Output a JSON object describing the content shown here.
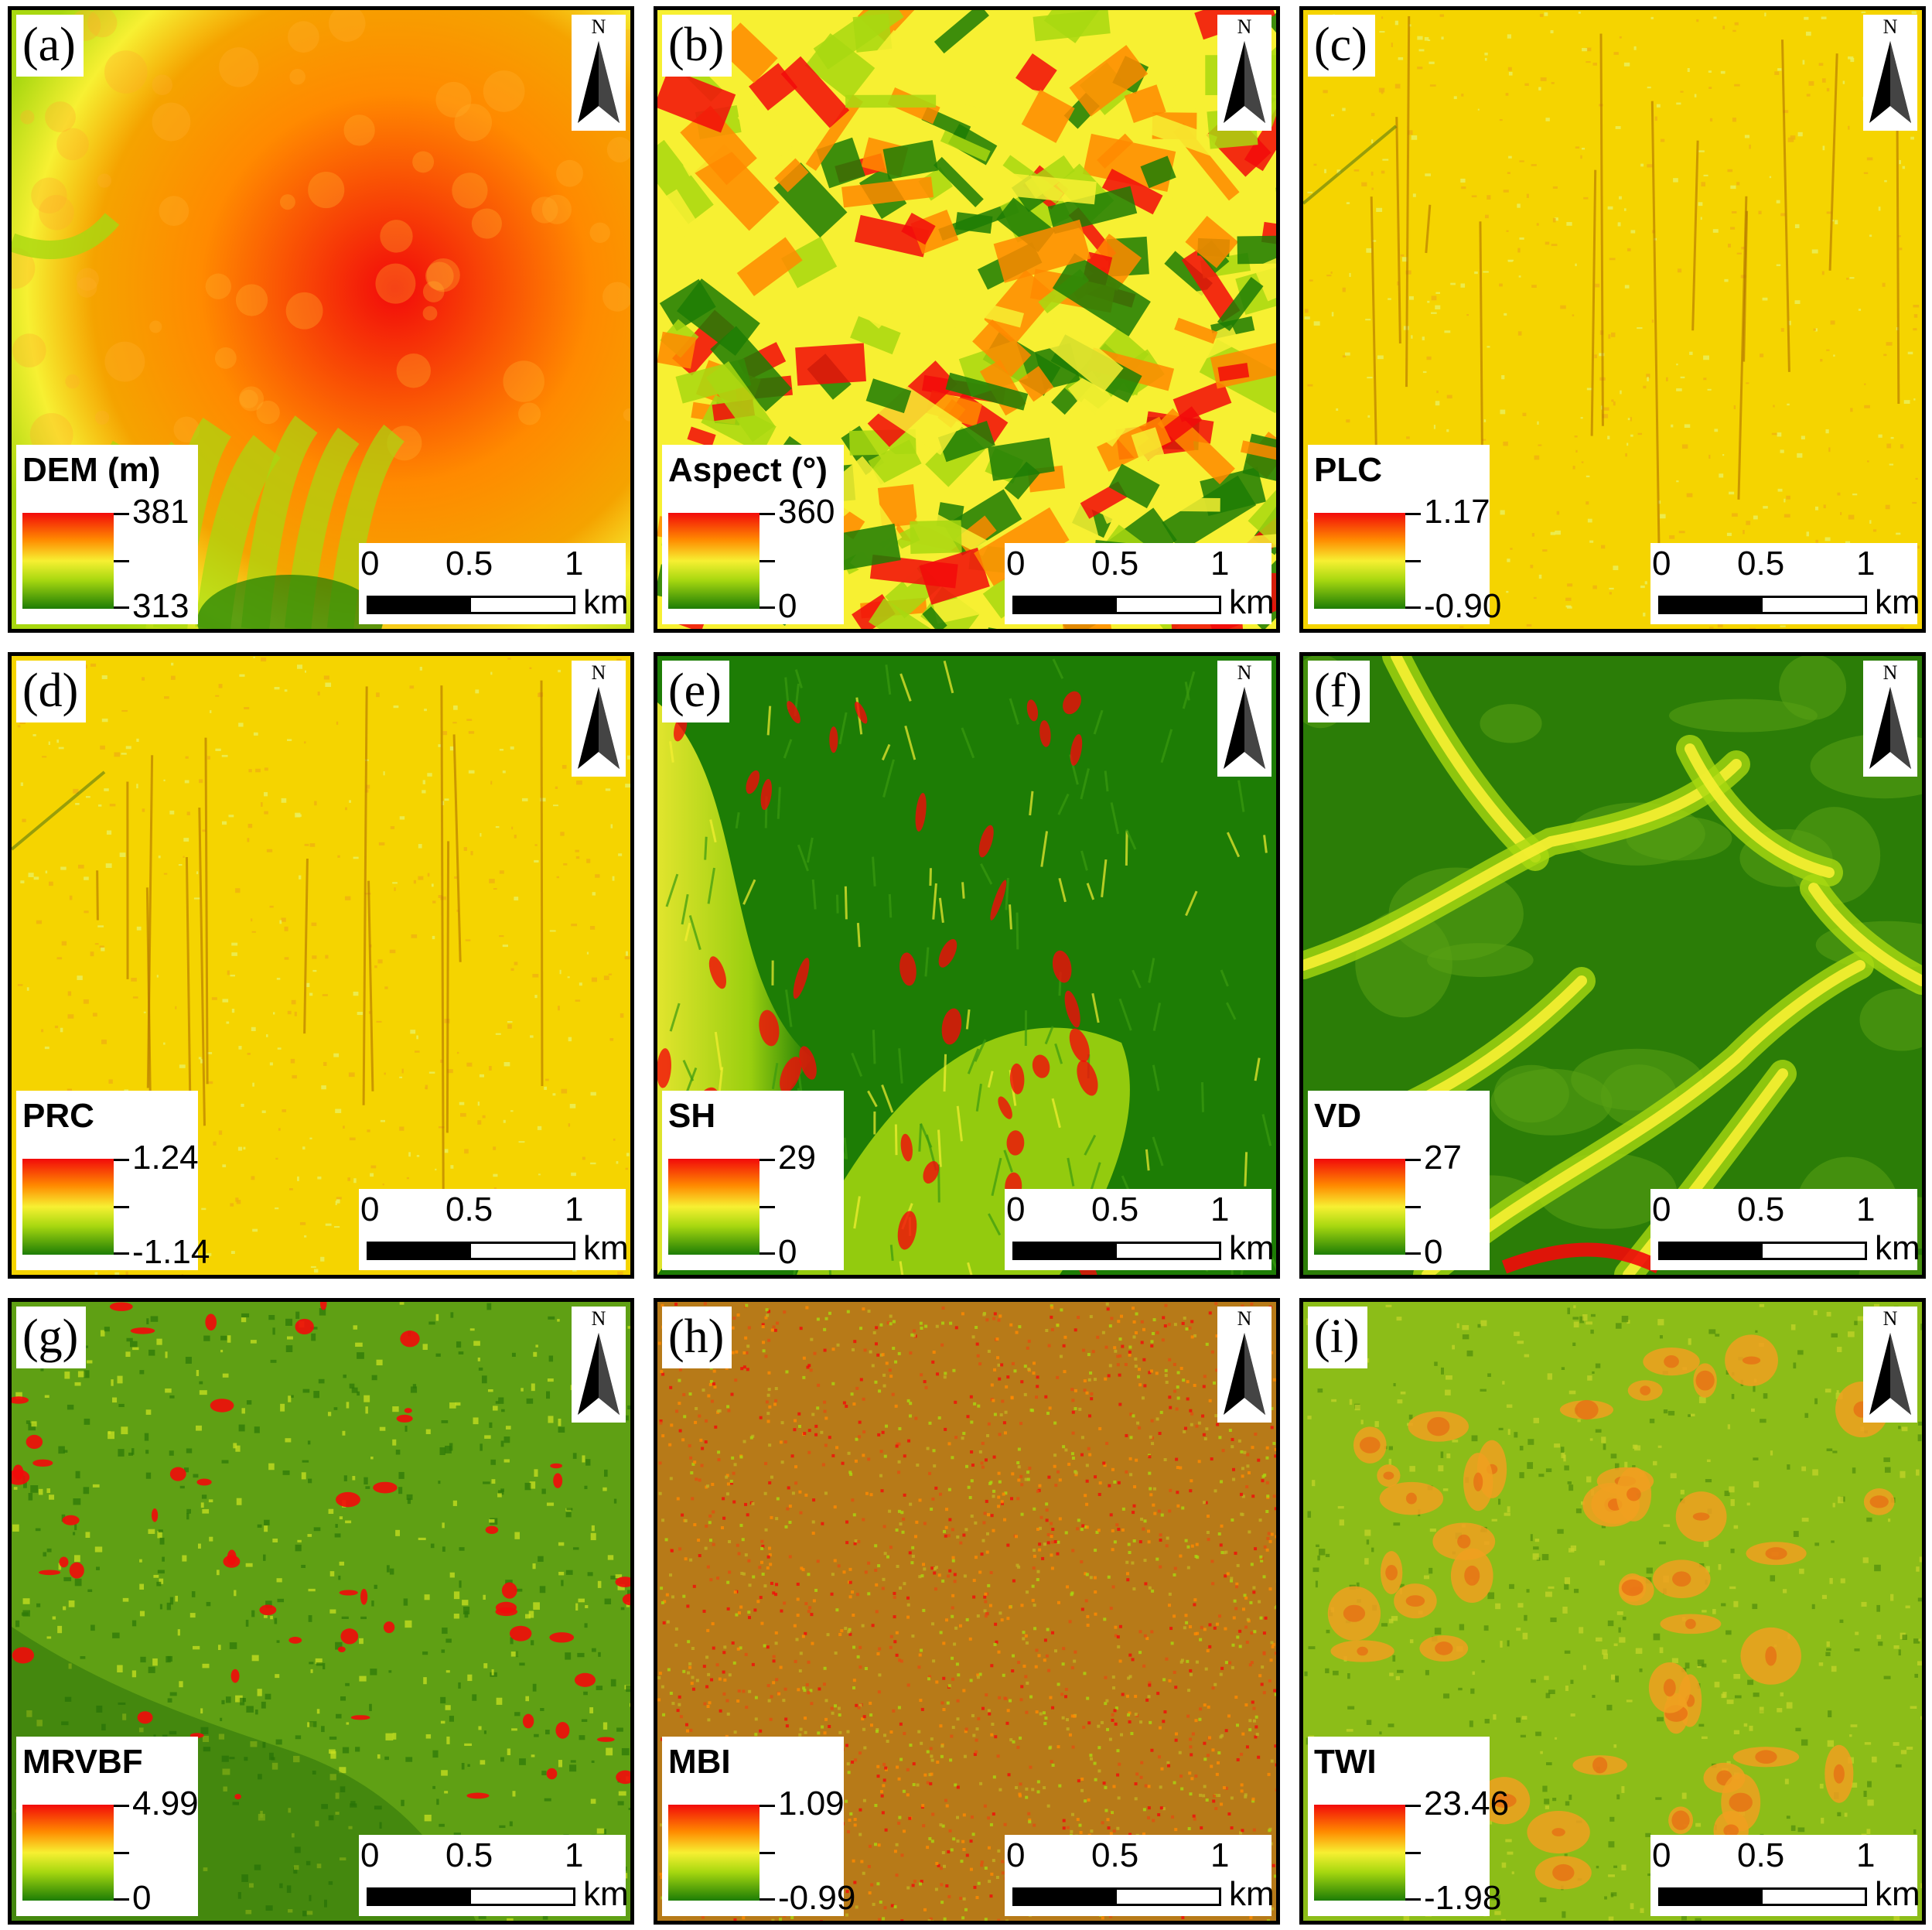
{
  "scale": {
    "ticks": [
      "0",
      "0.5",
      "1"
    ],
    "unit": "km"
  },
  "north_label": "N",
  "colors": {
    "ramp_high": "#f20a0a",
    "ramp_mid_high": "#ff8a00",
    "ramp_mid": "#f7f032",
    "ramp_mid_low": "#a8d810",
    "ramp_low": "#1d7d05"
  },
  "panels": [
    {
      "letter": "(a)",
      "title": "DEM (m)",
      "max": "381",
      "min": "313",
      "texture": "dem"
    },
    {
      "letter": "(b)",
      "title": "Aspect (°)",
      "max": "360",
      "min": "0",
      "texture": "aspect"
    },
    {
      "letter": "(c)",
      "title": "PLC",
      "max": "1.17",
      "min": "-0.90",
      "texture": "plc"
    },
    {
      "letter": "(d)",
      "title": "PRC",
      "max": "1.24",
      "min": "-1.14",
      "texture": "prc"
    },
    {
      "letter": "(e)",
      "title": "SH",
      "max": "29",
      "min": "0",
      "texture": "sh"
    },
    {
      "letter": "(f)",
      "title": "VD",
      "max": "27",
      "min": "0",
      "texture": "vd"
    },
    {
      "letter": "(g)",
      "title": "MRVBF",
      "max": "4.99",
      "min": "0",
      "texture": "mrvbf"
    },
    {
      "letter": "(h)",
      "title": "MBI",
      "max": "1.09",
      "min": "-0.99",
      "texture": "mbi"
    },
    {
      "letter": "(i)",
      "title": "TWI",
      "max": "23.46",
      "min": "-1.98",
      "texture": "twi"
    }
  ]
}
